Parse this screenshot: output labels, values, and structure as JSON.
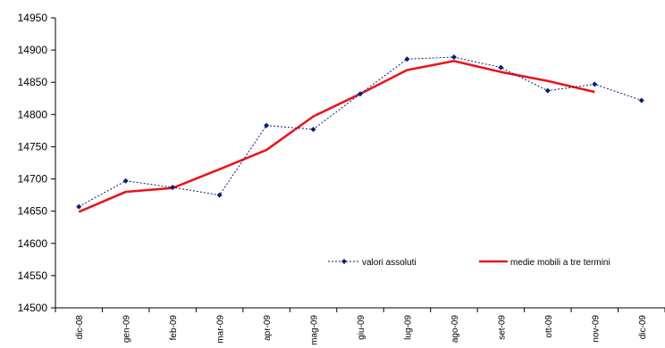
{
  "chart_data": {
    "type": "line",
    "title": "",
    "xlabel": "",
    "ylabel": "",
    "ylim": [
      14500,
      14950
    ],
    "yticks": [
      14500,
      14550,
      14600,
      14650,
      14700,
      14750,
      14800,
      14850,
      14900,
      14950
    ],
    "categories": [
      "dic-08",
      "gen-09",
      "feb-09",
      "mar-09",
      "apr-09",
      "mag-09",
      "giu-09",
      "lug-09",
      "ago-09",
      "set-09",
      "ott-09",
      "nov-09",
      "dic-09"
    ],
    "grid": false,
    "legend_position": "bottom-right",
    "series": [
      {
        "name": "valori assoluti",
        "color": "#0a1a7a",
        "style": "dotted-with-diamond-markers",
        "values": [
          14657,
          14697,
          14687,
          14675,
          14783,
          14777,
          14832,
          14886,
          14889,
          14873,
          14837,
          14847,
          14822
        ]
      },
      {
        "name": "medie mobili a tre termini",
        "color": "#e8161c",
        "style": "solid-thick",
        "values": [
          14649,
          14680,
          14686,
          14715,
          14745,
          14797,
          14832,
          14869,
          14883,
          14866,
          14852,
          14835,
          null
        ]
      }
    ]
  }
}
